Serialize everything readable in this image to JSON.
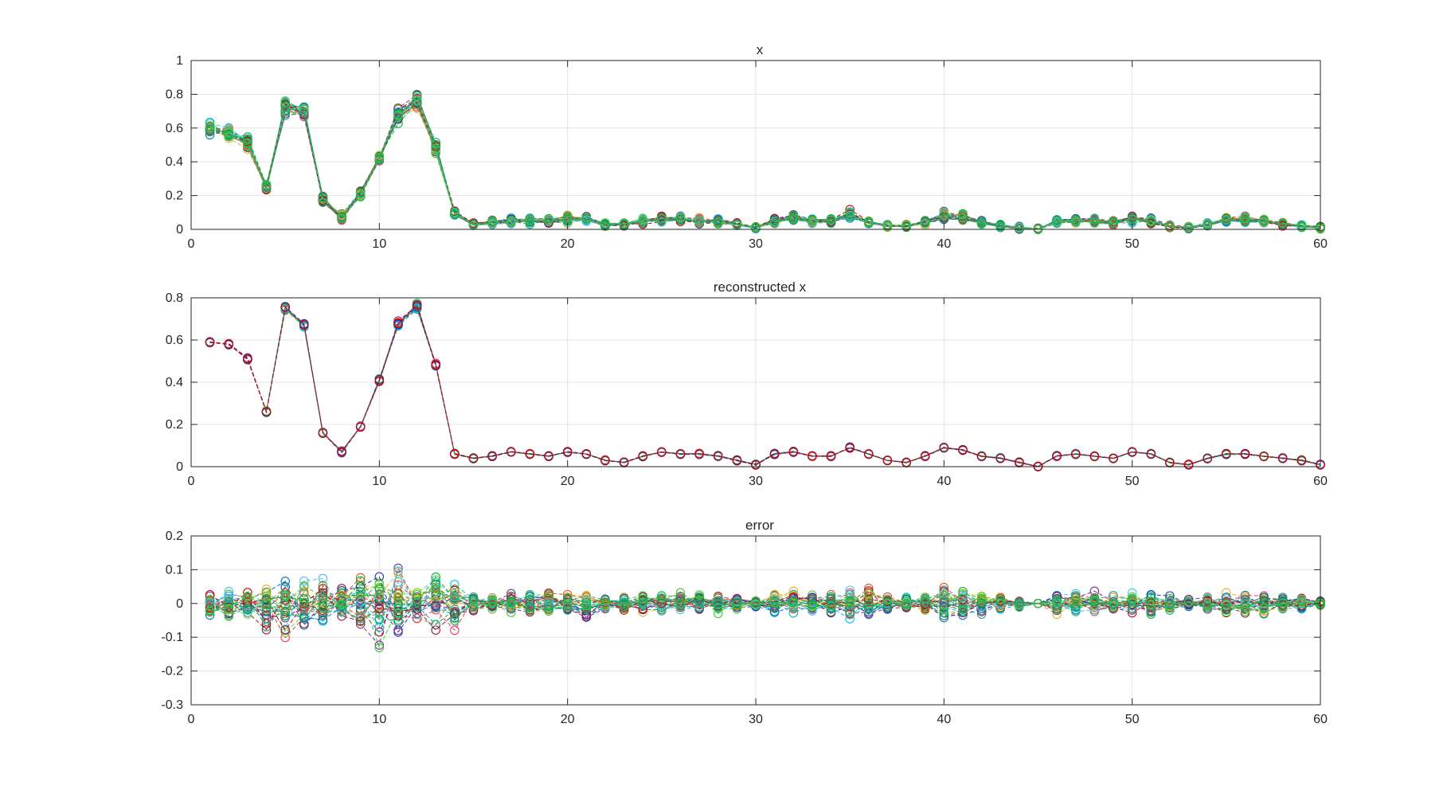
{
  "figure": {
    "background": "#ffffff",
    "grid_color": "#e3e3e3",
    "axis_color": "#262626",
    "series_colors": [
      "#0072BD",
      "#D95319",
      "#EDB120",
      "#7E2F8E",
      "#77AC30",
      "#4DBEEE",
      "#A2142F",
      "#1f9e89",
      "#00b050",
      "#33cc33",
      "#00bfff",
      "#ff3355",
      "#2233aa",
      "#cc0000",
      "#66dd22",
      "#00c0a0"
    ]
  },
  "chart_data": [
    {
      "id": "x",
      "type": "line",
      "marker": "circle",
      "linestyle": "dashed",
      "title": "x",
      "xlabel": "",
      "ylabel": "",
      "xlim": [
        0,
        60
      ],
      "ylim": [
        0,
        1
      ],
      "xticks": [
        "0",
        "10",
        "20",
        "30",
        "40",
        "50",
        "60"
      ],
      "yticks": [
        "0",
        "0.2",
        "0.4",
        "0.6",
        "0.8",
        "1"
      ],
      "grid": true,
      "many_series": true,
      "spread": "wide",
      "x": [
        1,
        2,
        3,
        4,
        5,
        6,
        7,
        8,
        9,
        10,
        11,
        12,
        13,
        14,
        15,
        16,
        17,
        18,
        19,
        20,
        21,
        22,
        23,
        24,
        25,
        26,
        27,
        28,
        29,
        30,
        31,
        32,
        33,
        34,
        35,
        36,
        37,
        38,
        39,
        40,
        41,
        42,
        43,
        44,
        45,
        46,
        47,
        48,
        49,
        50,
        51,
        52,
        53,
        54,
        55,
        56,
        57,
        58,
        59,
        60
      ],
      "mean": [
        0.59,
        0.57,
        0.51,
        0.25,
        0.72,
        0.7,
        0.18,
        0.07,
        0.21,
        0.42,
        0.68,
        0.76,
        0.48,
        0.09,
        0.03,
        0.04,
        0.05,
        0.05,
        0.05,
        0.06,
        0.06,
        0.03,
        0.03,
        0.05,
        0.06,
        0.06,
        0.05,
        0.05,
        0.03,
        0.01,
        0.05,
        0.07,
        0.05,
        0.05,
        0.09,
        0.04,
        0.02,
        0.02,
        0.04,
        0.08,
        0.07,
        0.04,
        0.02,
        0.01,
        0.0,
        0.05,
        0.05,
        0.05,
        0.04,
        0.06,
        0.05,
        0.02,
        0.01,
        0.03,
        0.06,
        0.06,
        0.05,
        0.03,
        0.02,
        0.01
      ]
    },
    {
      "id": "reconstructed",
      "type": "line",
      "marker": "circle",
      "linestyle": "dashed",
      "title": "reconstructed x",
      "xlabel": "",
      "ylabel": "",
      "xlim": [
        0,
        60
      ],
      "ylim": [
        0,
        0.8
      ],
      "xticks": [
        "0",
        "10",
        "20",
        "30",
        "40",
        "50",
        "60"
      ],
      "yticks": [
        "0",
        "0.2",
        "0.4",
        "0.6",
        "0.8"
      ],
      "grid": true,
      "many_series": true,
      "spread": "tight",
      "x": [
        1,
        2,
        3,
        4,
        5,
        6,
        7,
        8,
        9,
        10,
        11,
        12,
        13,
        14,
        15,
        16,
        17,
        18,
        19,
        20,
        21,
        22,
        23,
        24,
        25,
        26,
        27,
        28,
        29,
        30,
        31,
        32,
        33,
        34,
        35,
        36,
        37,
        38,
        39,
        40,
        41,
        42,
        43,
        44,
        45,
        46,
        47,
        48,
        49,
        50,
        51,
        52,
        53,
        54,
        55,
        56,
        57,
        58,
        59,
        60
      ],
      "mean": [
        0.59,
        0.58,
        0.51,
        0.26,
        0.75,
        0.67,
        0.16,
        0.07,
        0.19,
        0.41,
        0.68,
        0.76,
        0.48,
        0.06,
        0.04,
        0.05,
        0.07,
        0.06,
        0.05,
        0.07,
        0.06,
        0.03,
        0.02,
        0.05,
        0.07,
        0.06,
        0.06,
        0.05,
        0.03,
        0.01,
        0.06,
        0.07,
        0.05,
        0.05,
        0.09,
        0.06,
        0.03,
        0.02,
        0.05,
        0.09,
        0.08,
        0.05,
        0.04,
        0.02,
        0.0,
        0.05,
        0.06,
        0.05,
        0.04,
        0.07,
        0.06,
        0.02,
        0.01,
        0.04,
        0.06,
        0.06,
        0.05,
        0.04,
        0.03,
        0.01
      ]
    },
    {
      "id": "error",
      "type": "line",
      "marker": "circle",
      "linestyle": "dashed",
      "title": "error",
      "xlabel": "",
      "ylabel": "",
      "xlim": [
        0,
        60
      ],
      "ylim": [
        -0.3,
        0.2
      ],
      "xticks": [
        "0",
        "10",
        "20",
        "30",
        "40",
        "50",
        "60"
      ],
      "yticks": [
        "-0.3",
        "-0.2",
        "-0.1",
        "0",
        "0.1",
        "0.2"
      ],
      "grid": true,
      "many_series": true,
      "spread": "error",
      "x": [
        1,
        2,
        3,
        4,
        5,
        6,
        7,
        8,
        9,
        10,
        11,
        12,
        13,
        14,
        15,
        16,
        17,
        18,
        19,
        20,
        21,
        22,
        23,
        24,
        25,
        26,
        27,
        28,
        29,
        30,
        31,
        32,
        33,
        34,
        35,
        36,
        37,
        38,
        39,
        40,
        41,
        42,
        43,
        44,
        45,
        46,
        47,
        48,
        49,
        50,
        51,
        52,
        53,
        54,
        55,
        56,
        57,
        58,
        59,
        60
      ],
      "mean": [
        0,
        0,
        0,
        0,
        0,
        0,
        0,
        0,
        0,
        0,
        0,
        0,
        0,
        0,
        0,
        0,
        0,
        0,
        0,
        0,
        0,
        0,
        0,
        0,
        0,
        0,
        0,
        0,
        0,
        0,
        0,
        0,
        0,
        0,
        0,
        0,
        0,
        0,
        0,
        0,
        0,
        0,
        0,
        0,
        0,
        0,
        0,
        0,
        0,
        0,
        0,
        0,
        0,
        0,
        0,
        0,
        0,
        0,
        0,
        0
      ],
      "amplitude": [
        0.03,
        0.04,
        0.03,
        0.07,
        0.1,
        0.09,
        0.08,
        0.06,
        0.09,
        0.12,
        0.1,
        0.05,
        0.1,
        0.08,
        0.02,
        0.02,
        0.03,
        0.03,
        0.03,
        0.03,
        0.04,
        0.02,
        0.02,
        0.03,
        0.03,
        0.03,
        0.03,
        0.03,
        0.02,
        0.01,
        0.03,
        0.03,
        0.03,
        0.03,
        0.04,
        0.04,
        0.02,
        0.02,
        0.03,
        0.04,
        0.04,
        0.03,
        0.02,
        0.01,
        0.0,
        0.03,
        0.03,
        0.03,
        0.02,
        0.03,
        0.03,
        0.02,
        0.01,
        0.02,
        0.03,
        0.03,
        0.03,
        0.02,
        0.02,
        0.01
      ]
    }
  ]
}
